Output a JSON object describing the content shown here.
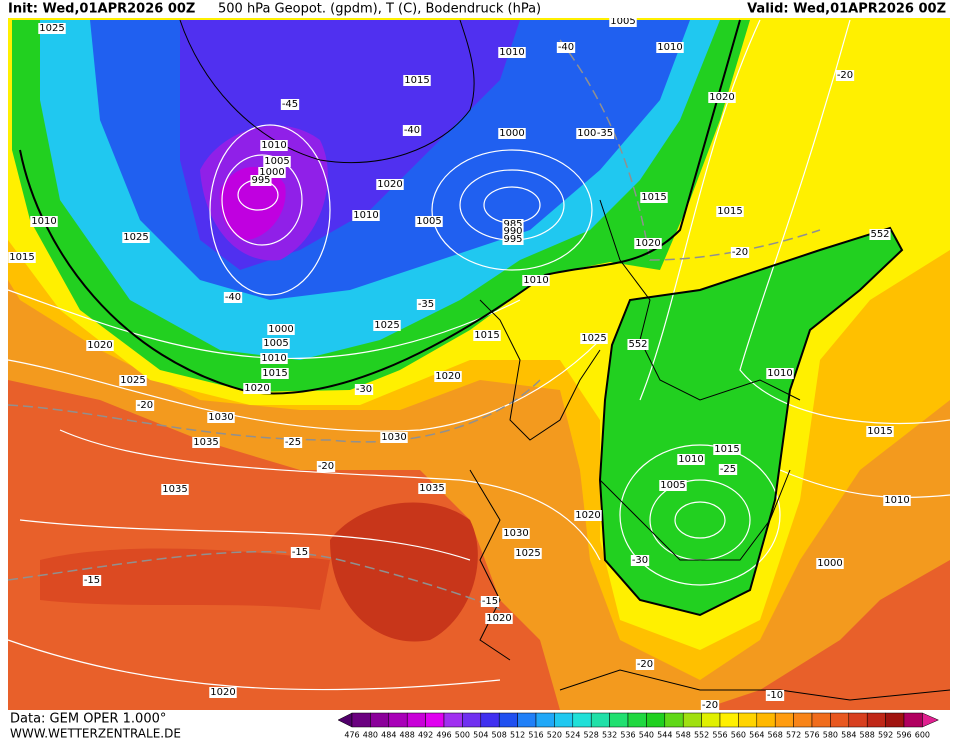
{
  "header": {
    "init": "Init: Wed,01APR2026 00Z",
    "title": "500 hPa Geopot. (gpdm), T (C), Bodendruck (hPa)",
    "valid": "Valid: Wed,01APR2026 00Z"
  },
  "footer": {
    "data": "Data: GEM OPER 1.000°",
    "site": "WWW.WETTERZENTRALE.DE"
  },
  "colorbar": {
    "labels": [
      476,
      480,
      484,
      488,
      492,
      496,
      500,
      504,
      508,
      512,
      516,
      520,
      524,
      528,
      532,
      536,
      540,
      544,
      548,
      552,
      556,
      560,
      564,
      568,
      572,
      576,
      580,
      584,
      588,
      592,
      596,
      600
    ],
    "colors": [
      "#50006a",
      "#6a0080",
      "#8a009a",
      "#a800b8",
      "#c800d8",
      "#e000f0",
      "#a030f0",
      "#7030f0",
      "#4030f0",
      "#2050f0",
      "#2080f8",
      "#20a8f8",
      "#20c8f0",
      "#20e0d8",
      "#20e0a8",
      "#20e070",
      "#20d840",
      "#20d020",
      "#60d818",
      "#a0e010",
      "#e0f000",
      "#fff000",
      "#ffd400",
      "#ffb800",
      "#ff9c10",
      "#f88418",
      "#f06c1c",
      "#e85820",
      "#d84020",
      "#c02818",
      "#a01410",
      "#b00060",
      "#e02090"
    ]
  },
  "contour_labels": [
    1025,
    1010,
    1010,
    1015,
    -45,
    1000,
    1005,
    1020,
    -40,
    1010,
    1005,
    1000,
    995,
    1020,
    1010,
    1005,
    985,
    990,
    995,
    1015,
    1015,
    1020,
    -20,
    552,
    1010,
    1025,
    1015,
    1010,
    -40,
    1000,
    1005,
    1010,
    1015,
    1020,
    1025,
    -35,
    1015,
    1020,
    1025,
    -20,
    1030,
    1035,
    1030,
    1020,
    1025,
    552,
    1010,
    1015,
    1010,
    1005,
    -25,
    1015,
    1010,
    1035,
    1035,
    -20,
    -25,
    -15,
    -15,
    1030,
    1025,
    1020,
    -30,
    -15,
    1020,
    1000,
    -20,
    1020,
    -10,
    -20,
    -20,
    1005,
    -40,
    -35,
    -30
  ]
}
